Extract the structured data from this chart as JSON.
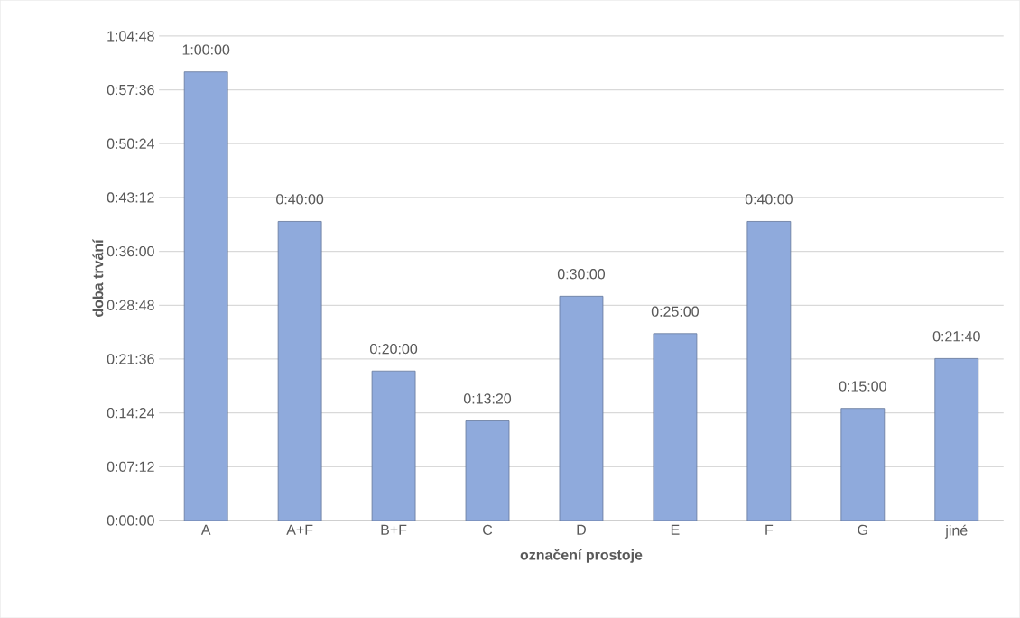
{
  "chart_data": {
    "type": "bar",
    "xlabel": "označení prostoje",
    "ylabel": "doba trvání",
    "categories": [
      "A",
      "A+F",
      "B+F",
      "C",
      "D",
      "E",
      "F",
      "G",
      "jiné"
    ],
    "values": [
      60,
      40,
      20,
      13.333,
      30,
      25,
      40,
      15,
      21.667
    ],
    "value_labels": [
      "1:00:00",
      "0:40:00",
      "0:20:00",
      "0:13:20",
      "0:30:00",
      "0:25:00",
      "0:40:00",
      "0:15:00",
      "0:21:40"
    ],
    "color": "#8faadc",
    "ylim": [
      0,
      64.8
    ],
    "yticks": [
      {
        "value": 0,
        "label": "0:00:00"
      },
      {
        "value": 7.2,
        "label": "0:07:12"
      },
      {
        "value": 14.4,
        "label": "0:14:24"
      },
      {
        "value": 21.6,
        "label": "0:21:36"
      },
      {
        "value": 28.8,
        "label": "0:28:48"
      },
      {
        "value": 36,
        "label": "0:36:00"
      },
      {
        "value": 43.2,
        "label": "0:43:12"
      },
      {
        "value": 50.4,
        "label": "0:50:24"
      },
      {
        "value": 57.6,
        "label": "0:57:36"
      },
      {
        "value": 64.8,
        "label": "1:04:48"
      }
    ],
    "grid": "y"
  }
}
